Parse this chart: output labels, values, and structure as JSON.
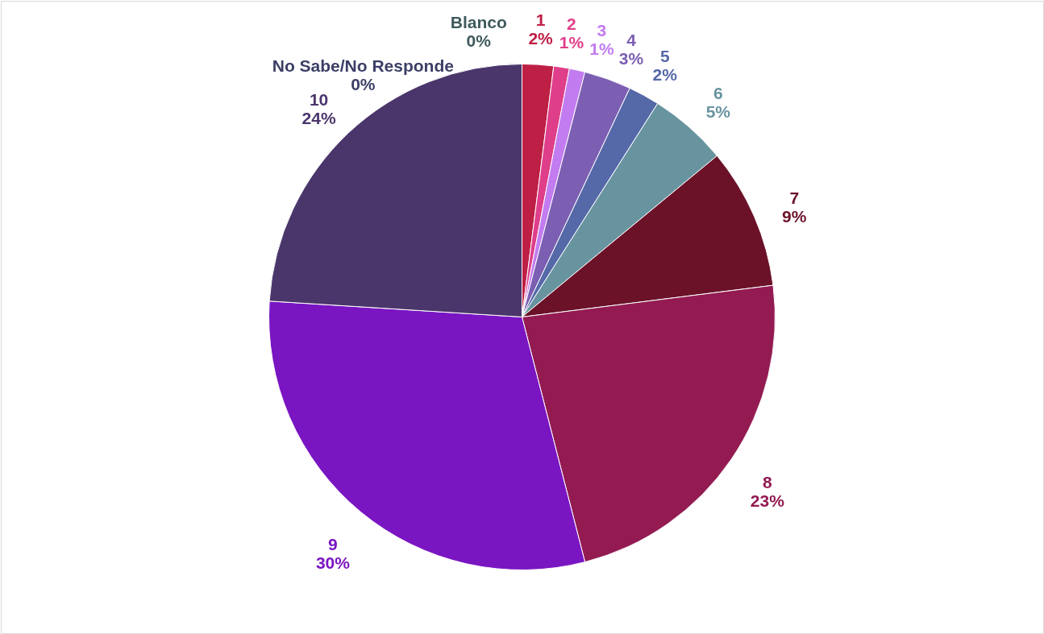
{
  "chart_data": {
    "type": "pie",
    "categories": [
      "1",
      "2",
      "3",
      "4",
      "5",
      "6",
      "7",
      "8",
      "9",
      "10",
      "No Sabe/No Responde",
      "Blanco"
    ],
    "values": [
      2,
      1,
      1,
      3,
      2,
      5,
      9,
      23,
      30,
      24,
      0,
      0
    ],
    "value_labels": [
      "2%",
      "1%",
      "1%",
      "3%",
      "2%",
      "5%",
      "9%",
      "23%",
      "30%",
      "24%",
      "0%",
      "0%"
    ],
    "colors": [
      "#be1f45",
      "#df3f8a",
      "#c27cf0",
      "#7c5fb3",
      "#5568a8",
      "#6894a0",
      "#6b1229",
      "#931b52",
      "#7a15c2",
      "#4a366b",
      "#3b3f66",
      "#3f5a5c"
    ]
  }
}
